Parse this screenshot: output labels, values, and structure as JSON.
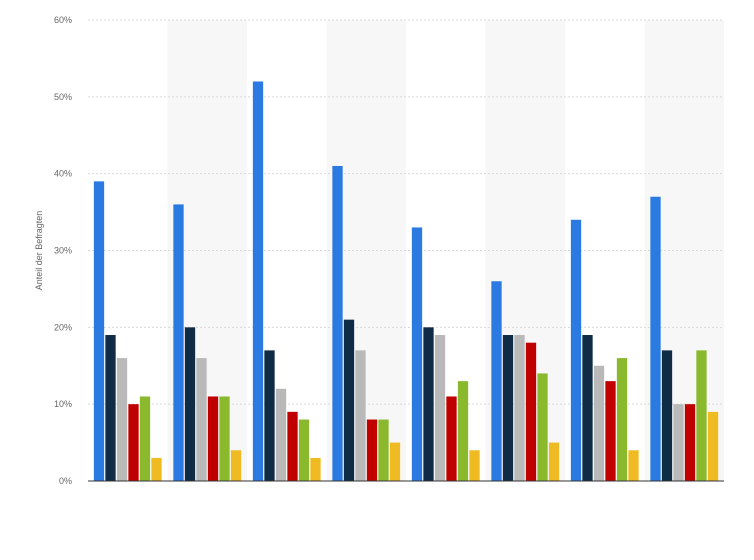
{
  "chart_data": {
    "type": "bar",
    "title": "",
    "xlabel": "",
    "ylabel": "Anteil der Befragten",
    "ylim": [
      0,
      60
    ],
    "yticks": [
      0,
      10,
      20,
      30,
      40,
      50,
      60
    ],
    "y_tick_suffix": "%",
    "grid": true,
    "legend": "none",
    "categories": [
      "",
      "",
      "",
      "",
      "",
      "",
      "",
      ""
    ],
    "series": [
      {
        "color": "#2a7ae2",
        "values": [
          39,
          36,
          52,
          41,
          33,
          26,
          34,
          37
        ]
      },
      {
        "color": "#0f2b46",
        "values": [
          19,
          20,
          17,
          21,
          20,
          19,
          19,
          17
        ]
      },
      {
        "color": "#b9b9b9",
        "values": [
          16,
          16,
          12,
          17,
          19,
          19,
          15,
          10
        ]
      },
      {
        "color": "#c00000",
        "values": [
          10,
          11,
          9,
          8,
          11,
          18,
          13,
          10
        ]
      },
      {
        "color": "#8ab92d",
        "values": [
          11,
          11,
          8,
          8,
          13,
          14,
          16,
          17
        ]
      },
      {
        "color": "#f0bb22",
        "values": [
          3,
          4,
          3,
          5,
          4,
          5,
          4,
          9
        ]
      }
    ]
  }
}
